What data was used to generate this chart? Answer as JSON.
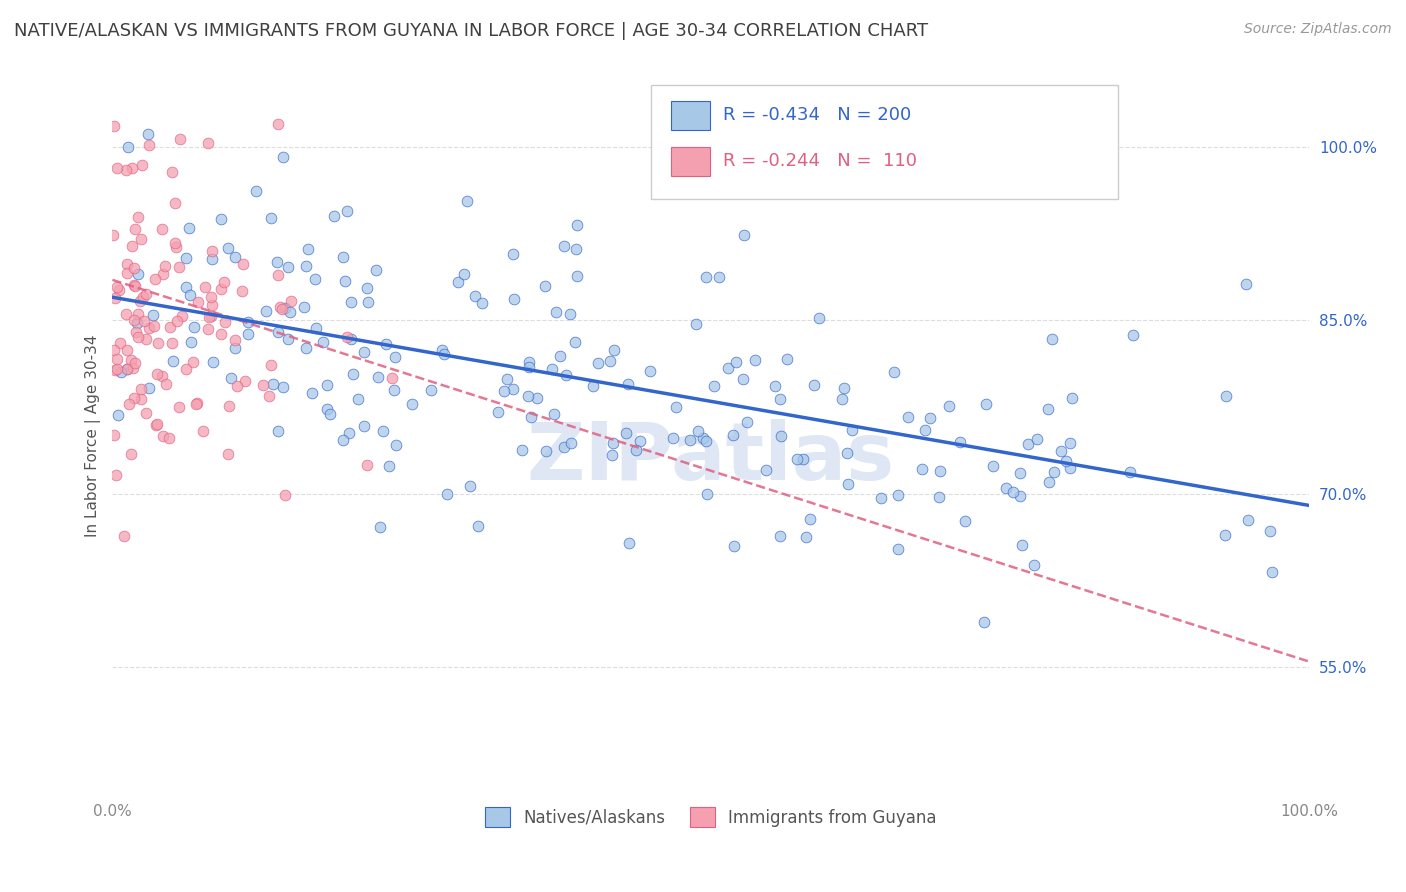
{
  "title": "NATIVE/ALASKAN VS IMMIGRANTS FROM GUYANA IN LABOR FORCE | AGE 30-34 CORRELATION CHART",
  "source": "Source: ZipAtlas.com",
  "ylabel": "In Labor Force | Age 30-34",
  "xmin": 0.0,
  "xmax": 1.0,
  "ymin": 0.44,
  "ymax": 1.06,
  "xtick_labels": [
    "0.0%",
    "100.0%"
  ],
  "ytick_values": [
    0.55,
    0.7,
    0.85,
    1.0
  ],
  "R_native": -0.434,
  "N_native": 200,
  "R_guyana": -0.244,
  "N_guyana": 110,
  "native_color": "#a8c8e8",
  "guyana_color": "#f4a0b0",
  "native_line_color": "#3366cc",
  "guyana_line_color": "#e06080",
  "watermark_color": "#c8d8ec",
  "background_color": "#ffffff",
  "title_color": "#404040",
  "title_fontsize": 13,
  "legend_fontsize": 13,
  "axis_label_fontsize": 11,
  "tick_fontsize": 11,
  "source_fontsize": 10
}
